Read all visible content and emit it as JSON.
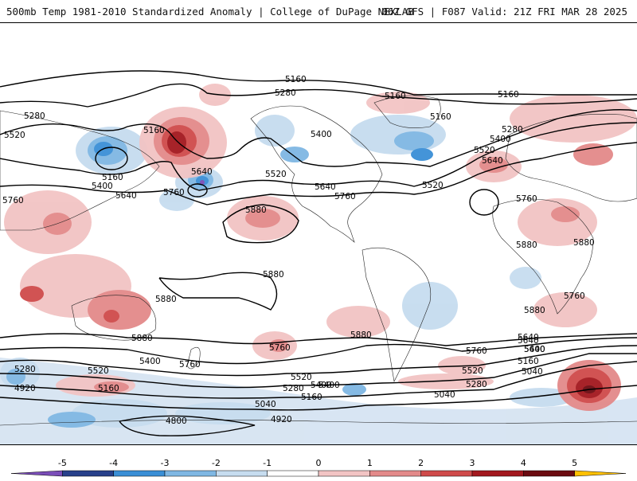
{
  "header": {
    "left": "500mb Temp 1981-2010 Standardized Anomaly | College of DuPage NEXLAB",
    "right": "06Z GFS | F087 Valid: 21Z FRI MAR 28 2025"
  },
  "map": {
    "contour_labels": [
      "5160",
      "5280",
      "5280",
      "5520",
      "5160",
      "5400",
      "5640",
      "5760",
      "5160",
      "5640",
      "5760",
      "5520",
      "5880",
      "5400",
      "5640",
      "5760",
      "5160",
      "5160",
      "5160",
      "5280",
      "5400",
      "5520",
      "5640",
      "5760",
      "5520",
      "5880",
      "5880",
      "5880",
      "5880",
      "5880",
      "5760",
      "5880",
      "5880",
      "5760",
      "5760",
      "5640",
      "5760",
      "5280",
      "5520",
      "5400",
      "5640",
      "5160",
      "4920",
      "5520",
      "5400",
      "5280",
      "5040",
      "5160",
      "4920",
      "4800",
      "5040",
      "5280",
      "5160",
      "5400",
      "5520",
      "5640",
      "5400",
      "5040"
    ]
  },
  "colorbar": {
    "tick_labels": [
      "-5",
      "-4",
      "-3",
      "-2",
      "-1",
      "0",
      "1",
      "2",
      "3",
      "4",
      "5"
    ],
    "colors": [
      "#7a4db8",
      "#27408b",
      "#3a8fd6",
      "#7fb7e3",
      "#c6dcef",
      "#ffffff",
      "#f2c4c4",
      "#e38a8a",
      "#cf4a4a",
      "#a3181e",
      "#6b0a10",
      "#ffc000"
    ]
  }
}
